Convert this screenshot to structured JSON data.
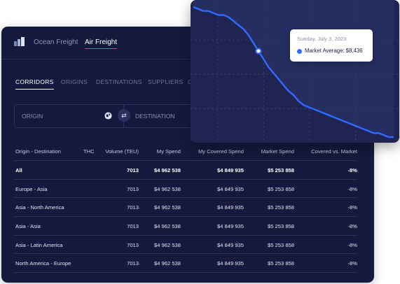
{
  "modes": [
    "Ocean Freight",
    "Air Freight"
  ],
  "active_mode": "Air Freight",
  "tabs": [
    "CORRIDORS",
    "ORIGINS",
    "DESTINATIONS",
    "SUPPLIERS",
    "C"
  ],
  "filters": {
    "origin": "ORIGIN",
    "destination": "DESTINATION",
    "swap_icon": "swap-icon",
    "origin_icon": "globe-icon"
  },
  "table": {
    "headers": [
      "Origin - Destination",
      "THC",
      "Volume (TEU)",
      "My Spend",
      "My Covered Spend",
      "Market Spend",
      "Covered vs. Market"
    ],
    "rows": [
      [
        "All",
        "",
        "7013",
        "$4 962 538",
        "$4 849 935",
        "$5 253 858",
        "-8%"
      ],
      [
        "Europe - Asia",
        "",
        "7013",
        "$4 962 538",
        "$4 849 935",
        "$5 253 858",
        "-8%"
      ],
      [
        "Asia - North America",
        "",
        "7013",
        "$4 962 538",
        "$4 849 935",
        "$5 253 858",
        "-8%"
      ],
      [
        "Asia - Asia",
        "",
        "7013",
        "$4 962 538",
        "$4 849 935",
        "$5 253 858",
        "-8%"
      ],
      [
        "Asia - Latin America",
        "",
        "7013",
        "$4 962 538",
        "$4 849 935",
        "$5 253 858",
        "-8%"
      ],
      [
        "North America - Europe",
        "",
        "7013",
        "$4 962 538",
        "$4 849 935",
        "$5 253 858",
        "-8%"
      ]
    ]
  },
  "tooltip": {
    "date": "Sunday, July 3, 2023",
    "label": "Market Average: $8,436"
  },
  "colors": {
    "accent": "#2f6bff",
    "panel": "#141a3d",
    "tab_underline": "#c9478d"
  },
  "chart_data": {
    "type": "line",
    "x": [
      0,
      1,
      2,
      3,
      4,
      5,
      6,
      7,
      8,
      9,
      10,
      11,
      12,
      13,
      14,
      15,
      16,
      17,
      18,
      19,
      20,
      21,
      22,
      23,
      24,
      25,
      26,
      27,
      28,
      29,
      30,
      31,
      32,
      33,
      34,
      35,
      36,
      37,
      38,
      39,
      40
    ],
    "series": [
      {
        "name": "Market Average",
        "values": [
          100,
          99,
          98,
          98,
          97,
          96,
          96,
          95,
          93,
          91,
          89,
          86,
          82,
          78,
          74,
          70,
          67,
          64,
          61,
          58,
          56,
          53,
          51,
          50,
          49,
          48,
          47,
          46,
          45,
          44,
          43,
          42,
          41,
          40,
          39,
          38,
          37,
          37,
          36,
          35,
          35
        ]
      }
    ],
    "highlight_index": 13,
    "grid": true,
    "xlabel": "",
    "ylabel": ""
  }
}
